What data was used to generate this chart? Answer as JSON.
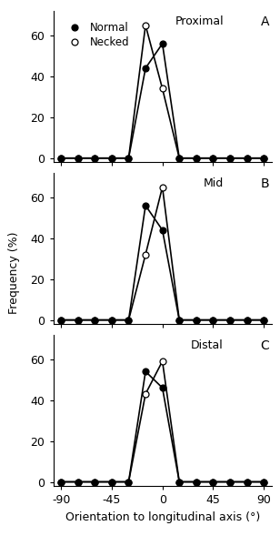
{
  "x_vals": [
    -90,
    -75,
    -60,
    -45,
    -30,
    -15,
    0,
    15,
    30,
    45,
    60,
    75,
    90
  ],
  "panels": [
    {
      "label": "Proximal",
      "panel_id": "A",
      "normal": [
        0,
        0,
        0,
        0,
        0,
        44,
        56,
        0,
        0,
        0,
        0,
        0,
        0
      ],
      "necked": [
        0,
        0,
        0,
        0,
        0,
        65,
        34,
        0,
        0,
        0,
        0,
        0,
        0
      ],
      "show_legend": true
    },
    {
      "label": "Mid",
      "panel_id": "B",
      "normal": [
        0,
        0,
        0,
        0,
        0,
        56,
        44,
        0,
        0,
        0,
        0,
        0,
        0
      ],
      "necked": [
        0,
        0,
        0,
        0,
        0,
        32,
        65,
        0,
        0,
        0,
        0,
        0,
        0
      ],
      "show_legend": false
    },
    {
      "label": "Distal",
      "panel_id": "C",
      "normal": [
        0,
        0,
        0,
        0,
        0,
        54,
        46,
        0,
        0,
        0,
        0,
        0,
        0
      ],
      "necked": [
        0,
        0,
        0,
        0,
        0,
        43,
        59,
        0,
        0,
        0,
        0,
        0,
        0
      ],
      "show_legend": false
    }
  ],
  "xlabel": "Orientation to longitudinal axis (°)",
  "ylabel": "Frequency (%)",
  "xlim": [
    -97,
    97
  ],
  "ylim": [
    -2,
    72
  ],
  "xticks": [
    -90,
    -45,
    0,
    45,
    90
  ],
  "yticks": [
    0,
    20,
    40,
    60
  ],
  "linewidth": 1.2,
  "markersize": 5,
  "markeredgewidth": 0.9
}
